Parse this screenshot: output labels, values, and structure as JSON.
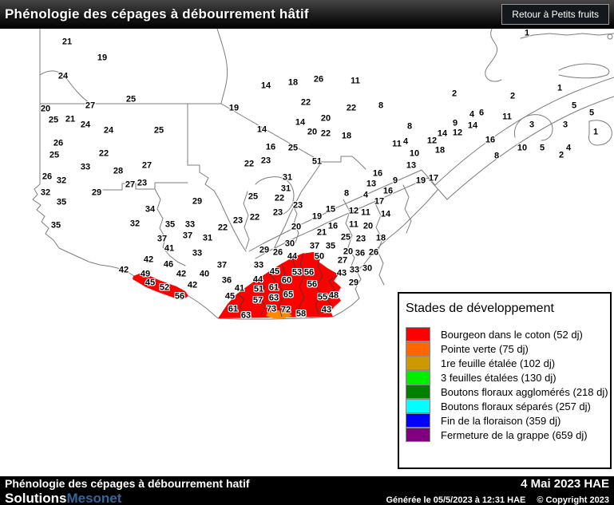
{
  "header": {
    "title": "Phénologie des cépages à débourrement hâtif",
    "button": "Retour à Petits fruits"
  },
  "legend": {
    "title": "Stades de développement",
    "items": [
      {
        "color": "#ff0000",
        "label": "Bourgeon dans le coton (52 dj)"
      },
      {
        "color": "#ff6600",
        "label": "Pointe verte (75 dj)"
      },
      {
        "color": "#cc9900",
        "label": "1re feuille étalée (102 dj)"
      },
      {
        "color": "#00ee00",
        "label": "3 feuilles étalées (130 dj)"
      },
      {
        "color": "#008000",
        "label": "Boutons floraux agglomérés (218 dj)"
      },
      {
        "color": "#00ffff",
        "label": "Boutons floraux séparés (257 dj)"
      },
      {
        "color": "#0000ff",
        "label": "Fin de la floraison (359 dj)"
      },
      {
        "color": "#800080",
        "label": "Fermeture de la grappe (659 dj)"
      }
    ]
  },
  "map": {
    "zone_colors": {
      "bourgeon_dans_le_coton": "#ff0000",
      "pointe_verte": "#ff8800"
    },
    "labels": [
      [
        21,
        84,
        53
      ],
      [
        19,
        128,
        73
      ],
      [
        24,
        79,
        96
      ],
      [
        25,
        164,
        125
      ],
      [
        20,
        57,
        137
      ],
      [
        27,
        113,
        133
      ],
      [
        25,
        67,
        151
      ],
      [
        21,
        88,
        150
      ],
      [
        24,
        107,
        157
      ],
      [
        24,
        136,
        164
      ],
      [
        25,
        199,
        164
      ],
      [
        26,
        73,
        180
      ],
      [
        25,
        68,
        195
      ],
      [
        22,
        130,
        193
      ],
      [
        33,
        107,
        210
      ],
      [
        28,
        148,
        215
      ],
      [
        27,
        184,
        208
      ],
      [
        26,
        59,
        222
      ],
      [
        32,
        77,
        227
      ],
      [
        27,
        163,
        232
      ],
      [
        23,
        178,
        230
      ],
      [
        14,
        333,
        108
      ],
      [
        18,
        367,
        104
      ],
      [
        26,
        399,
        100
      ],
      [
        11,
        445,
        102
      ],
      [
        19,
        293,
        136
      ],
      [
        22,
        383,
        129
      ],
      [
        22,
        440,
        136
      ],
      [
        8,
        477,
        133
      ],
      [
        14,
        328,
        163
      ],
      [
        14,
        376,
        154
      ],
      [
        20,
        408,
        149
      ],
      [
        20,
        391,
        166
      ],
      [
        22,
        408,
        168
      ],
      [
        18,
        434,
        171
      ],
      [
        16,
        339,
        185
      ],
      [
        25,
        367,
        186
      ],
      [
        22,
        312,
        206
      ],
      [
        23,
        333,
        202
      ],
      [
        51,
        397,
        203
      ],
      [
        31,
        360,
        223
      ],
      [
        31,
        358,
        237
      ],
      [
        1,
        660,
        42
      ],
      [
        2,
        569,
        118
      ],
      [
        1,
        701,
        111
      ],
      [
        2,
        642,
        121
      ],
      [
        5,
        719,
        133
      ],
      [
        5,
        741,
        142
      ],
      [
        4,
        591,
        144
      ],
      [
        6,
        603,
        142
      ],
      [
        11,
        635,
        147
      ],
      [
        9,
        570,
        155
      ],
      [
        14,
        592,
        158
      ],
      [
        3,
        666,
        157
      ],
      [
        3,
        708,
        157
      ],
      [
        1,
        746,
        166
      ],
      [
        14,
        554,
        168
      ],
      [
        12,
        573,
        167
      ],
      [
        12,
        541,
        177
      ],
      [
        16,
        614,
        176
      ],
      [
        18,
        551,
        189
      ],
      [
        10,
        654,
        186
      ],
      [
        5,
        679,
        186
      ],
      [
        4,
        712,
        186
      ],
      [
        2,
        703,
        195
      ],
      [
        8,
        622,
        196
      ],
      [
        8,
        513,
        159
      ],
      [
        11,
        497,
        181
      ],
      [
        4,
        508,
        178
      ],
      [
        10,
        519,
        193
      ],
      [
        13,
        515,
        208
      ],
      [
        16,
        473,
        218
      ],
      [
        9,
        495,
        227
      ],
      [
        13,
        465,
        231
      ],
      [
        19,
        527,
        227
      ],
      [
        17,
        543,
        224
      ],
      [
        4,
        458,
        245
      ],
      [
        16,
        486,
        240
      ],
      [
        17,
        475,
        253
      ],
      [
        12,
        443,
        265
      ],
      [
        11,
        458,
        267
      ],
      [
        14,
        483,
        269
      ],
      [
        15,
        414,
        263
      ],
      [
        32,
        57,
        242
      ],
      [
        35,
        77,
        254
      ],
      [
        29,
        121,
        242
      ],
      [
        34,
        188,
        263
      ],
      [
        35,
        70,
        283
      ],
      [
        32,
        169,
        281
      ],
      [
        35,
        213,
        282
      ],
      [
        33,
        238,
        282
      ],
      [
        29,
        247,
        253
      ],
      [
        37,
        203,
        300
      ],
      [
        37,
        235,
        296
      ],
      [
        41,
        212,
        312
      ],
      [
        33,
        247,
        318
      ],
      [
        42,
        186,
        326
      ],
      [
        46,
        211,
        332
      ],
      [
        42,
        155,
        339
      ],
      [
        49,
        182,
        344
      ],
      [
        42,
        227,
        344
      ],
      [
        40,
        256,
        344
      ],
      [
        45,
        188,
        355
      ],
      [
        52,
        206,
        361
      ],
      [
        42,
        241,
        358
      ],
      [
        56,
        225,
        372
      ],
      [
        22,
        279,
        286
      ],
      [
        31,
        260,
        299
      ],
      [
        20,
        371,
        285
      ],
      [
        16,
        417,
        284
      ],
      [
        21,
        403,
        292
      ],
      [
        30,
        363,
        306
      ],
      [
        37,
        394,
        309
      ],
      [
        35,
        414,
        309
      ],
      [
        29,
        331,
        314
      ],
      [
        26,
        348,
        317
      ],
      [
        44,
        366,
        322
      ],
      [
        50,
        400,
        322
      ],
      [
        27,
        429,
        327
      ],
      [
        43,
        428,
        343
      ],
      [
        33,
        324,
        333
      ],
      [
        37,
        278,
        333
      ],
      [
        45,
        344,
        341
      ],
      [
        53,
        372,
        342
      ],
      [
        56,
        387,
        342
      ],
      [
        36,
        284,
        352
      ],
      [
        44,
        323,
        351
      ],
      [
        60,
        359,
        352
      ],
      [
        56,
        391,
        357
      ],
      [
        41,
        300,
        362
      ],
      [
        51,
        324,
        363
      ],
      [
        61,
        343,
        361
      ],
      [
        45,
        288,
        372
      ],
      [
        57,
        323,
        377
      ],
      [
        63,
        343,
        374
      ],
      [
        65,
        361,
        370
      ],
      [
        55,
        404,
        373
      ],
      [
        48,
        418,
        371
      ],
      [
        61,
        292,
        388
      ],
      [
        63,
        308,
        396
      ],
      [
        73,
        340,
        388
      ],
      [
        72,
        358,
        389
      ],
      [
        58,
        377,
        394
      ],
      [
        43,
        409,
        389
      ],
      [
        25,
        317,
        247
      ],
      [
        22,
        350,
        249
      ],
      [
        23,
        373,
        258
      ],
      [
        8,
        434,
        243
      ],
      [
        23,
        348,
        267
      ],
      [
        23,
        298,
        277
      ],
      [
        22,
        319,
        273
      ],
      [
        19,
        397,
        272
      ],
      [
        11,
        443,
        282
      ],
      [
        20,
        461,
        284
      ],
      [
        25,
        433,
        298
      ],
      [
        23,
        452,
        300
      ],
      [
        18,
        477,
        299
      ],
      [
        20,
        436,
        316
      ],
      [
        36,
        451,
        318
      ],
      [
        26,
        468,
        317
      ],
      [
        33,
        444,
        339
      ],
      [
        30,
        460,
        337
      ],
      [
        29,
        443,
        355
      ]
    ]
  },
  "footer": {
    "title": "Phénologie des cépages à débourrement hatif",
    "date": "4 Mai 2023 HAE",
    "brand_white": "Solutions",
    "brand_blue": "Mesonet",
    "generated": "Générée le 05/5/2023 à 12:31 HAE",
    "copyright": "© Copyright 2023"
  }
}
